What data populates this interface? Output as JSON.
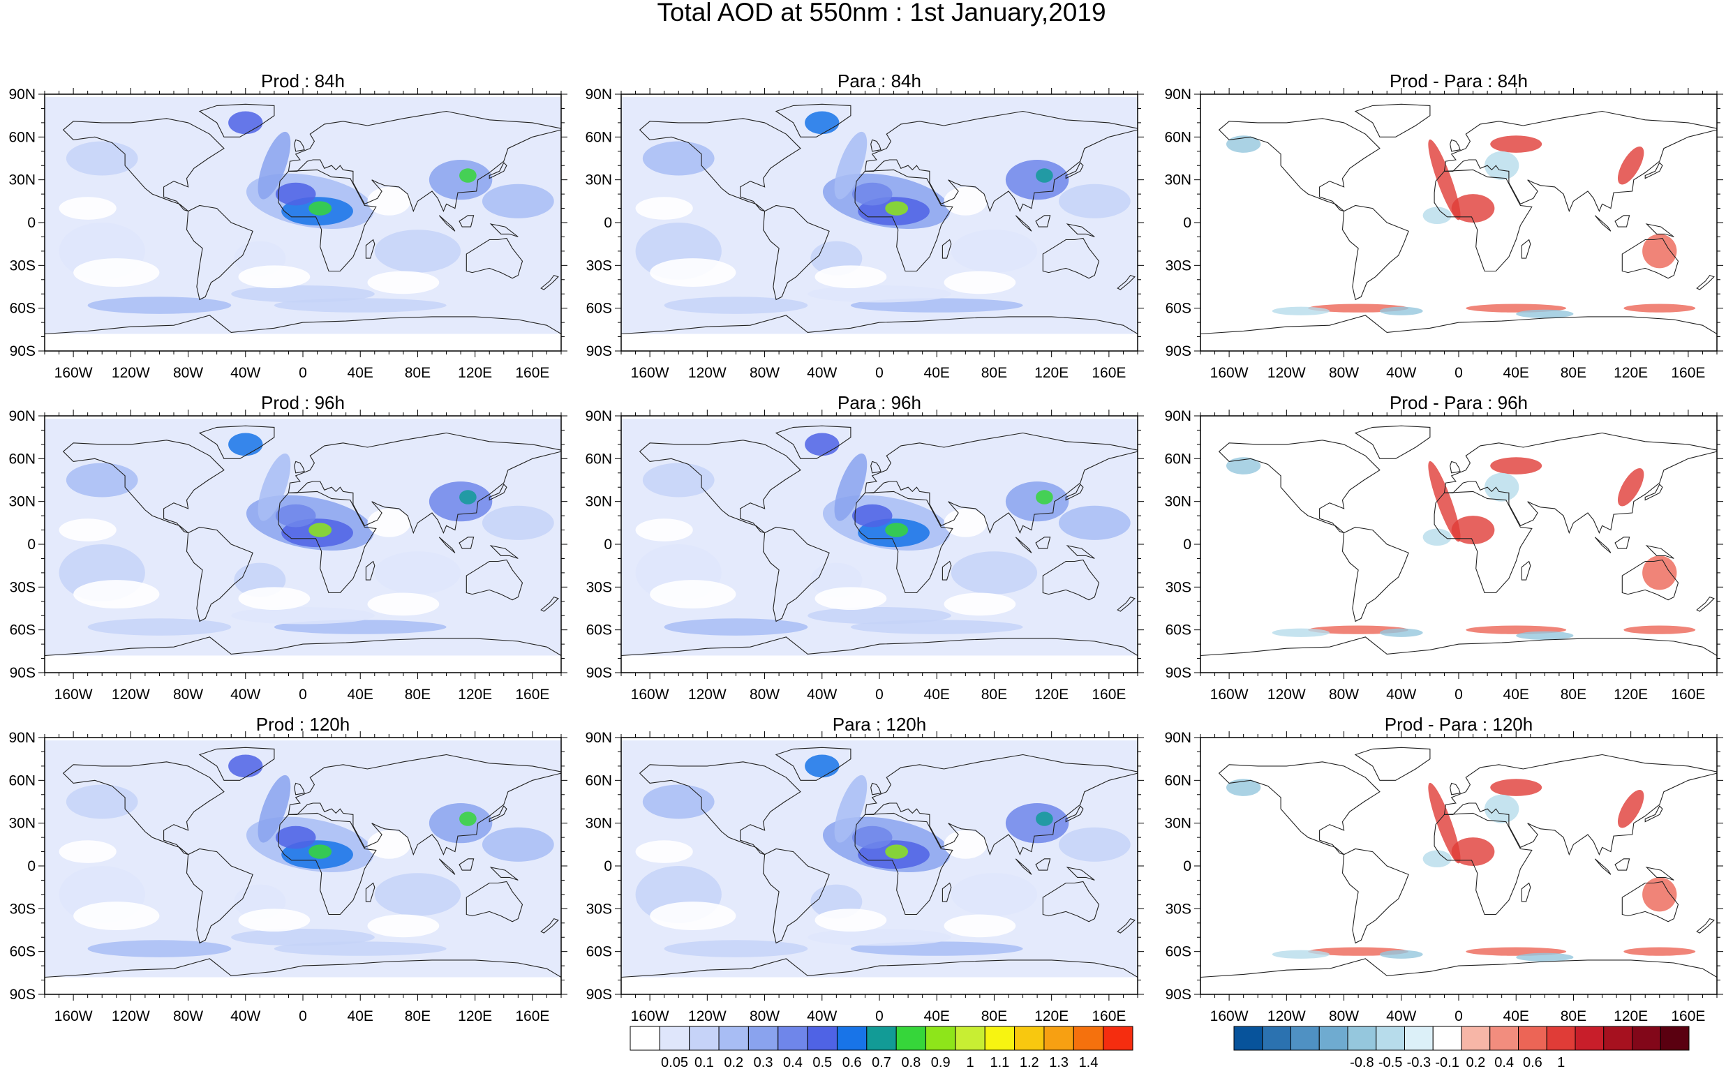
{
  "figure": {
    "title": "Total AOD at 550nm : 1st January,2019"
  },
  "axes": {
    "lat_labels": [
      "90N",
      "60N",
      "30N",
      "0",
      "30S",
      "60S",
      "90S"
    ],
    "lon_labels": [
      "160W",
      "120W",
      "80W",
      "40W",
      "0",
      "40E",
      "80E",
      "120E",
      "160E"
    ]
  },
  "panels": [
    {
      "title": "Prod : 84h",
      "kind": "aod"
    },
    {
      "title": "Para : 84h",
      "kind": "aod"
    },
    {
      "title": "Prod - Para : 84h",
      "kind": "diff"
    },
    {
      "title": "Prod : 96h",
      "kind": "aod"
    },
    {
      "title": "Para : 96h",
      "kind": "aod"
    },
    {
      "title": "Prod - Para : 96h",
      "kind": "diff"
    },
    {
      "title": "Prod : 120h",
      "kind": "aod"
    },
    {
      "title": "Para : 120h",
      "kind": "aod"
    },
    {
      "title": "Prod - Para : 120h",
      "kind": "diff"
    }
  ],
  "colorbars": [
    {
      "name": "aod",
      "labels": [
        "0.05",
        "0.1",
        "0.2",
        "0.3",
        "0.4",
        "0.5",
        "0.6",
        "0.7",
        "0.8",
        "0.9",
        "1",
        "1.1",
        "1.2",
        "1.3",
        "1.4"
      ],
      "colors": [
        "#ffffff",
        "#dfe6fb",
        "#c6d3f8",
        "#a8bdf4",
        "#8aa3ee",
        "#6f86ea",
        "#4f63e5",
        "#1874e8",
        "#129b96",
        "#36d63a",
        "#8ee51a",
        "#c8ee33",
        "#f7f411",
        "#f8c80f",
        "#f7a012",
        "#f5710d",
        "#f52d0f"
      ]
    },
    {
      "name": "diff",
      "labels": [
        "-0.8",
        "-0.5",
        "-0.3",
        "-0.1",
        "0.2",
        "0.4",
        "0.6",
        "1"
      ],
      "colors": [
        "#07539b",
        "#2b72b0",
        "#4f91c3",
        "#6fabd0",
        "#95c7dd",
        "#b7dceb",
        "#dcf0f8",
        "#ffffff",
        "#f7b6a7",
        "#f28d7e",
        "#ec6556",
        "#e03c37",
        "#c81e2a",
        "#a6111f",
        "#820719",
        "#5a0010"
      ]
    }
  ]
}
